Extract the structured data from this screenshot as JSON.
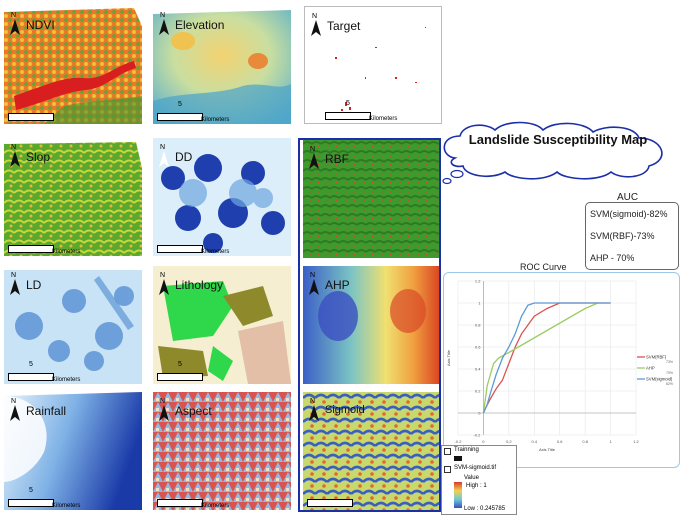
{
  "panels": [
    {
      "label": "NDVI"
    },
    {
      "label": "Elevation"
    },
    {
      "label": "Target"
    },
    {
      "label": "Slop"
    },
    {
      "label": "DD"
    },
    {
      "label": "RBF"
    },
    {
      "label": "LD"
    },
    {
      "label": "Lithology"
    },
    {
      "label": "AHP"
    },
    {
      "label": "Rainfall"
    },
    {
      "label": "Aspect"
    },
    {
      "label": "Sigmoid"
    }
  ],
  "north_label": "N",
  "scale_number": "5",
  "kilometers_label": "Kilometers",
  "title_cloud": "Landslide Susceptibility Map",
  "auc": {
    "title": "AUC",
    "lines": [
      "SVM(sigmoid)-82%",
      "SVM(RBF)-73%",
      "AHP - 70%"
    ]
  },
  "chart_data": {
    "type": "line",
    "title": "ROC Curve",
    "xlabel": "Axis Title",
    "ylabel": "Axis Title",
    "xlim": [
      -0.2,
      1.2
    ],
    "ylim": [
      -0.2,
      1.2
    ],
    "xticks": [
      "-0.2",
      "0",
      "0.2",
      "0.4",
      "0.6",
      "0.8",
      "1",
      "1.2"
    ],
    "yticks": [
      "-0.2",
      "0",
      "0.2",
      "0.4",
      "0.6",
      "0.8",
      "1",
      "1.2"
    ],
    "series": [
      {
        "name": "SVM(RBF)",
        "legend_value": "73%",
        "color": "#d9534f",
        "x": [
          0,
          0.02,
          0.05,
          0.1,
          0.15,
          0.2,
          0.25,
          0.3,
          0.35,
          0.4,
          0.5,
          0.6,
          0.7,
          1
        ],
        "y": [
          0,
          0.05,
          0.12,
          0.22,
          0.3,
          0.45,
          0.6,
          0.72,
          0.8,
          0.88,
          0.95,
          1,
          1,
          1
        ]
      },
      {
        "name": "AHP",
        "legend_value": "70%",
        "color": "#9ccc65",
        "x": [
          0,
          0.03,
          0.08,
          0.12,
          0.2,
          0.35,
          0.5,
          0.65,
          0.8,
          0.9
        ],
        "y": [
          0,
          0.25,
          0.45,
          0.5,
          0.55,
          0.65,
          0.75,
          0.85,
          0.95,
          1
        ]
      },
      {
        "name": "SVM(sigmoid)",
        "legend_value": "82%",
        "color": "#5b9bd5",
        "x": [
          0,
          0.03,
          0.06,
          0.1,
          0.15,
          0.2,
          0.25,
          0.3,
          0.35,
          0.4,
          0.5,
          0.7,
          1
        ],
        "y": [
          0,
          0.08,
          0.2,
          0.35,
          0.5,
          0.6,
          0.72,
          0.88,
          0.98,
          1,
          1,
          1,
          1
        ]
      }
    ]
  },
  "map_legend": {
    "training": "Trainning",
    "layer": "SVM-sigmoid.tif",
    "value": "Value",
    "high": "High : 1",
    "low": "Low : 0.245785"
  }
}
